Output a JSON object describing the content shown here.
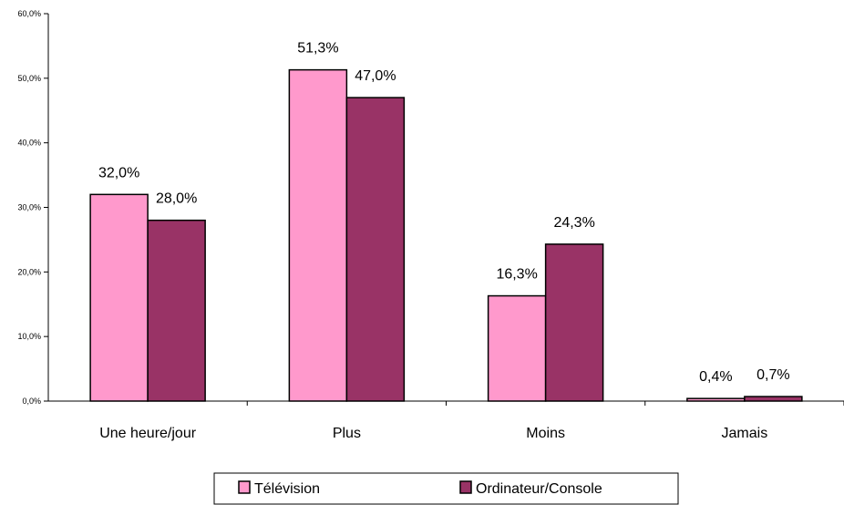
{
  "chart_data": {
    "type": "bar",
    "categories": [
      "Une heure/jour",
      "Plus",
      "Moins",
      "Jamais"
    ],
    "series": [
      {
        "name": "Télévision",
        "values": [
          32.0,
          51.3,
          16.3,
          0.4
        ],
        "labels": [
          "32,0%",
          "51,3%",
          "16,3%",
          "0,4%"
        ]
      },
      {
        "name": "Ordinateur/Console",
        "values": [
          28.0,
          47.0,
          24.3,
          0.7
        ],
        "labels": [
          "28,0%",
          "47,0%",
          "24,3%",
          "0,7%"
        ]
      }
    ],
    "yticks": [
      "0,0%",
      "10,0%",
      "20,0%",
      "30,0%",
      "40,0%",
      "50,0%",
      "60,0%"
    ],
    "ylim": [
      0,
      60
    ],
    "grid": false,
    "legend_position": "bottom",
    "colors": [
      "#ff99cc",
      "#993366"
    ],
    "title": "",
    "xlabel": "",
    "ylabel": ""
  }
}
